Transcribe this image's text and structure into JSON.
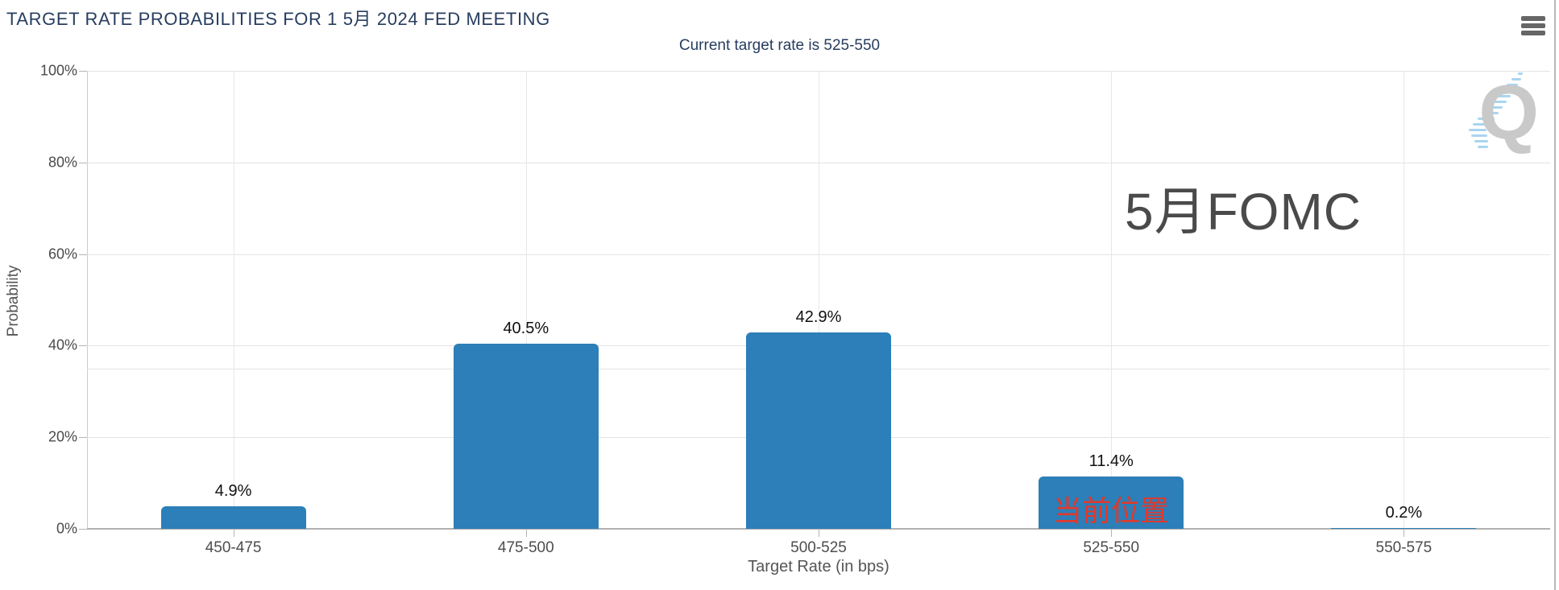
{
  "header": {
    "title": "TARGET RATE PROBABILITIES FOR 1 5月 2024 FED MEETING",
    "subtitle": "Current target rate is 525-550",
    "menu_icon": "hamburger-icon"
  },
  "chart_data": {
    "type": "bar",
    "title": "TARGET RATE PROBABILITIES FOR 1 5月 2024 FED MEETING",
    "subtitle": "Current target rate is 525-550",
    "categories": [
      "450-475",
      "475-500",
      "500-525",
      "525-550",
      "550-575"
    ],
    "values": [
      4.9,
      40.5,
      42.9,
      11.4,
      0.2
    ],
    "value_labels": [
      "4.9%",
      "40.5%",
      "42.9%",
      "11.4%",
      "0.2%"
    ],
    "xlabel": "Target Rate (in bps)",
    "ylabel": "Probability",
    "ylim": [
      0,
      100
    ],
    "ytick_percents": [
      0,
      20,
      40,
      60,
      80,
      100
    ],
    "ytick_labels": [
      "0%",
      "20%",
      "40%",
      "60%",
      "80%",
      "100%"
    ],
    "extra_gridline_percents": [
      35
    ],
    "grid": true,
    "legend": "none",
    "bar_color": "#2c7fb8",
    "annotations": [
      {
        "text": "5月FOMC",
        "color": "#4a4a4a",
        "position": "upper-right"
      },
      {
        "text": "当前位置",
        "color": "#e2382b",
        "target_category": "525-550"
      }
    ],
    "watermark_letter": "Q"
  },
  "colors": {
    "title": "#273d5f",
    "bar": "#2c7fb8",
    "current_position_label": "#e2382b",
    "fomc_annotation": "#4a4a4a",
    "gridline": "#e3e3e3"
  }
}
